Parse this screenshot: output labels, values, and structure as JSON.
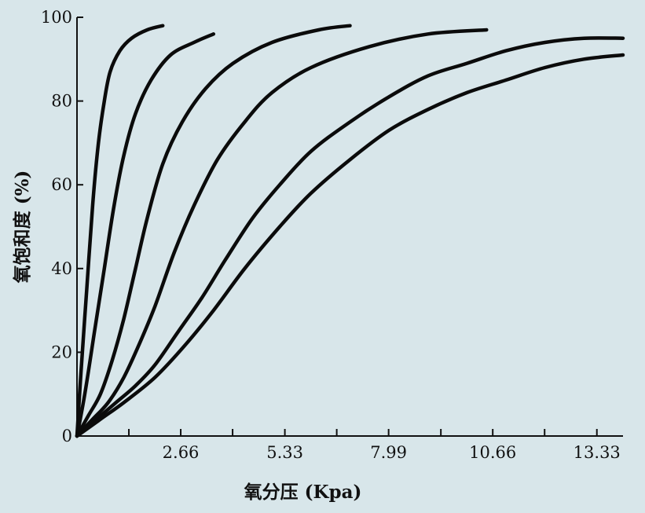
{
  "chart_data": {
    "type": "line",
    "title": "",
    "xlabel": "氧分压 (Kpa)",
    "ylabel": "氧饱和度 (%)",
    "xlim": [
      0,
      14.0
    ],
    "ylim": [
      0,
      100
    ],
    "x_ticks": [
      2.66,
      5.33,
      7.99,
      10.66,
      13.33
    ],
    "x_tick_labels": [
      "2.66",
      "5.33",
      "7.99",
      "10.66",
      "13.33"
    ],
    "x_minor_ticks": [
      1.33,
      3.99,
      6.66,
      9.33,
      11.99
    ],
    "y_ticks": [
      0,
      20,
      40,
      60,
      80,
      100
    ],
    "y_tick_labels": [
      "0",
      "20",
      "40",
      "60",
      "80",
      "100"
    ],
    "grid": false,
    "legend": "none",
    "series": [
      {
        "x": [
          0,
          0.1,
          0.25,
          0.4,
          0.55,
          0.7,
          0.85,
          1.1,
          1.4,
          1.8,
          2.2
        ],
        "y": [
          0,
          15,
          35,
          55,
          70,
          80,
          87,
          92,
          95,
          97,
          98
        ]
      },
      {
        "x": [
          0,
          0.2,
          0.45,
          0.7,
          0.95,
          1.2,
          1.5,
          1.9,
          2.4,
          3.0,
          3.5
        ],
        "y": [
          0,
          10,
          25,
          40,
          55,
          67,
          77,
          85,
          91,
          94,
          96
        ]
      },
      {
        "x": [
          0,
          0.3,
          0.6,
          0.9,
          1.2,
          1.5,
          1.8,
          2.2,
          2.7,
          3.3,
          4.0,
          5.0,
          6.2,
          7.0
        ],
        "y": [
          0,
          5,
          10,
          18,
          28,
          40,
          52,
          65,
          75,
          83,
          89,
          94,
          97,
          98
        ]
      },
      {
        "x": [
          0,
          0.4,
          0.8,
          1.2,
          1.6,
          2.0,
          2.5,
          3.0,
          3.6,
          4.3,
          5.0,
          6.0,
          7.5,
          9.0,
          10.5
        ],
        "y": [
          0,
          4,
          8,
          14,
          22,
          31,
          44,
          55,
          66,
          75,
          82,
          88,
          93,
          96,
          97
        ]
      },
      {
        "x": [
          0,
          0.5,
          1.0,
          1.5,
          2.0,
          2.6,
          3.2,
          3.8,
          4.5,
          5.2,
          6.0,
          7.0,
          8.0,
          9.0,
          10.0,
          11.0,
          12.0,
          13.0,
          14.0
        ],
        "y": [
          0,
          4,
          8,
          12,
          17,
          25,
          33,
          42,
          52,
          60,
          68,
          75,
          81,
          86,
          89,
          92,
          94,
          95,
          95
        ]
      },
      {
        "x": [
          0,
          0.6,
          1.2,
          2.0,
          2.8,
          3.5,
          4.3,
          5.2,
          6.0,
          7.0,
          8.0,
          9.0,
          10.0,
          11.0,
          12.0,
          13.0,
          14.0
        ],
        "y": [
          0,
          4,
          8,
          14,
          22,
          30,
          40,
          50,
          58,
          66,
          73,
          78,
          82,
          85,
          88,
          90,
          91
        ]
      }
    ]
  }
}
